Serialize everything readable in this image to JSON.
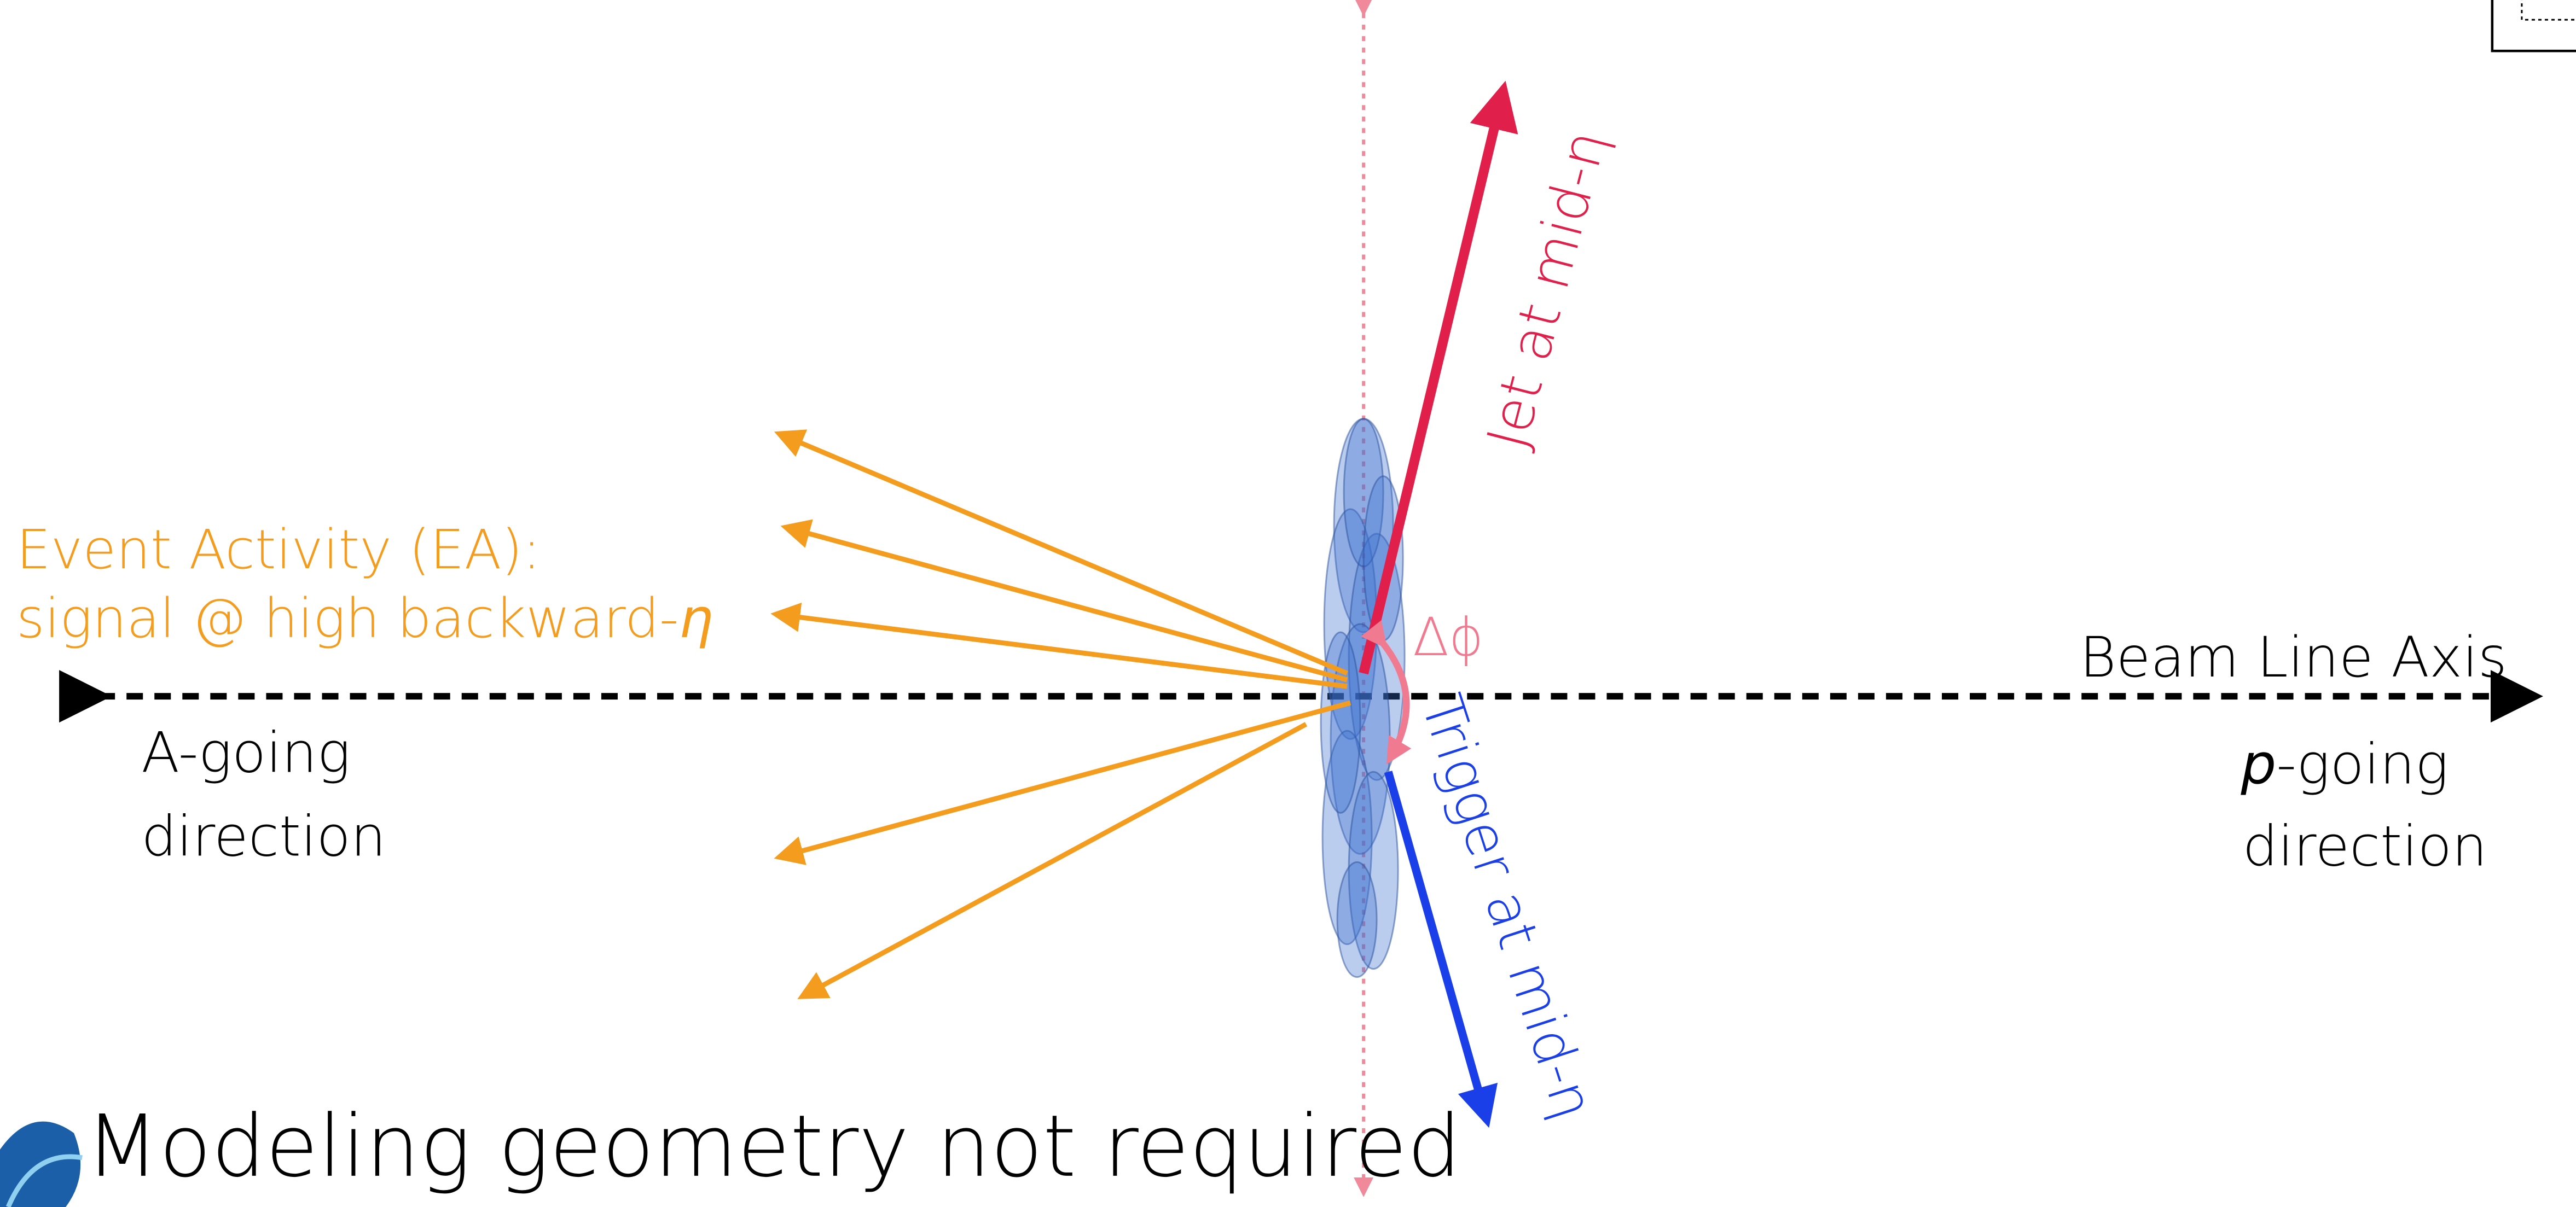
{
  "labels": {
    "ea_title": "Event Activity (EA):",
    "ea_signal": {
      "text": "signal @ high backward-",
      "symbol": "η"
    },
    "a_going": {
      "line1": "A-going",
      "line2": "direction"
    },
    "beam_axis": "Beam Line Axis",
    "p_going": {
      "symbol": "p",
      "text": "-going",
      "line2": "direction"
    },
    "jet": "Jet at mid-η",
    "trigger": "Trigger at mid-η",
    "delta_phi": "Δϕ"
  },
  "footer": "Modeling geometry not required"
}
